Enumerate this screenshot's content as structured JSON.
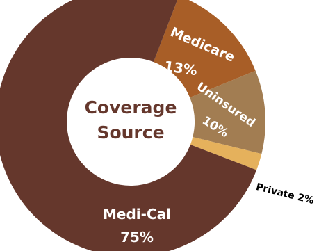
{
  "chart_data": {
    "type": "pie",
    "title": "Coverage Source",
    "title_lines": [
      "Coverage",
      "Source"
    ],
    "hole": "donut",
    "slices": [
      {
        "label": "Medicare",
        "value_label": "13%",
        "value": 13,
        "color": "#a85e27",
        "text_color": "#ffffff"
      },
      {
        "label": "Uninsured",
        "value_label": "10%",
        "value": 10,
        "color": "#a27d52",
        "text_color": "#ffffff"
      },
      {
        "label": "Private",
        "value_label": "2%",
        "value": 2,
        "color": "#e5b15c",
        "text_color": "#000000"
      },
      {
        "label": "Medi-Cal",
        "value_label": "75%",
        "value": 75,
        "color": "#65372c",
        "text_color": "#ffffff"
      }
    ]
  },
  "colors": {
    "background": "#ffffff",
    "title": "#65372c"
  }
}
